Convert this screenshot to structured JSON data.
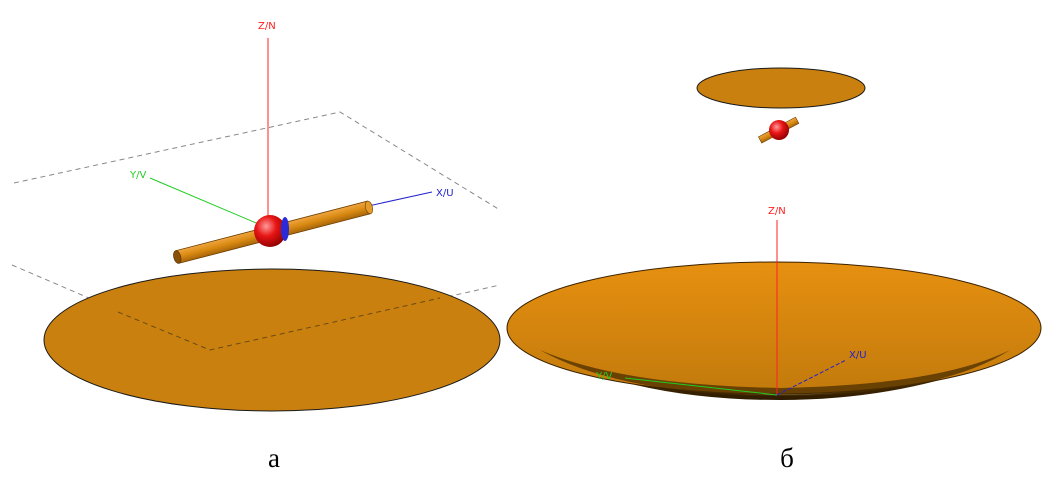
{
  "colors": {
    "disc": "#c9800e",
    "disc_dark": "#a86a0a",
    "disc_shadow": "#3a2200",
    "z_axis": "#ff2020",
    "y_axis": "#22cc22",
    "x_axis": "#2222cc",
    "sphere": "#e01010",
    "rod": "#d98a12"
  },
  "panel_a": {
    "z_label": "Z/N",
    "y_label": "Y/V",
    "x_label": "X/U",
    "caption": "а"
  },
  "panel_b": {
    "z_label": "Z/N",
    "y_label": "Y/V",
    "x_label": "X/U",
    "caption": "б"
  }
}
